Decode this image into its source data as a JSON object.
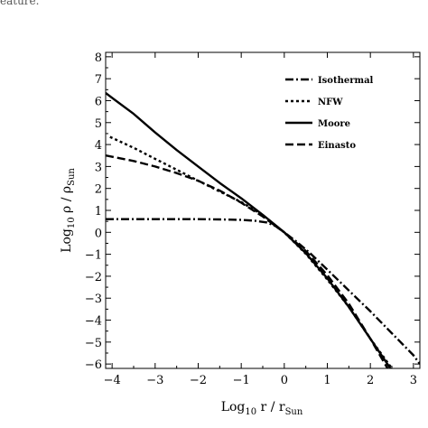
{
  "caption": "eature.",
  "chart_data": {
    "type": "line",
    "xlabel": {
      "base": "Log",
      "sub": "10",
      "main": " r / r",
      "unit_sub": "Sun"
    },
    "ylabel": {
      "base": "Log",
      "sub": "10",
      "main": " ρ / ρ",
      "unit_sub": "Sun"
    },
    "xlim": [
      -4.15,
      3.15
    ],
    "ylim": [
      -6.2,
      8.2
    ],
    "xticks": [
      -4,
      -3,
      -2,
      -1,
      0,
      1,
      2,
      3
    ],
    "yticks": [
      -6,
      -5,
      -4,
      -3,
      -2,
      -1,
      0,
      1,
      2,
      3,
      4,
      5,
      6,
      7,
      8
    ],
    "legend_position": "top-right",
    "grid": false,
    "series": [
      {
        "name": "Isothermal",
        "dash": "dashdot",
        "x": [
          -4.15,
          -3,
          -2,
          -1.5,
          -1,
          -0.7,
          -0.4,
          -0.2,
          0,
          0.3,
          0.6,
          1,
          1.5,
          2,
          2.5,
          3,
          3.15
        ],
        "y": [
          0.6,
          0.6,
          0.6,
          0.59,
          0.57,
          0.53,
          0.45,
          0.28,
          0.0,
          -0.45,
          -0.95,
          -1.7,
          -2.65,
          -3.6,
          -4.6,
          -5.6,
          -6.0
        ]
      },
      {
        "name": "NFW",
        "dash": "dot",
        "x": [
          -4.05,
          -3.5,
          -3,
          -2.5,
          -2,
          -1.5,
          -1,
          -0.5,
          0,
          0.5,
          1,
          1.5,
          2,
          2.5
        ],
        "y": [
          4.35,
          3.85,
          3.35,
          2.85,
          2.35,
          1.86,
          1.38,
          0.78,
          0.0,
          -0.98,
          -2.15,
          -3.4,
          -4.85,
          -6.2
        ]
      },
      {
        "name": "Moore",
        "dash": "solid",
        "x": [
          -4.15,
          -3.5,
          -3,
          -2.5,
          -2,
          -1.5,
          -1,
          -0.5,
          0,
          0.5,
          1,
          1.5,
          2,
          2.5
        ],
        "y": [
          6.35,
          5.4,
          4.55,
          3.75,
          3.0,
          2.25,
          1.55,
          0.8,
          0.0,
          -0.95,
          -2.1,
          -3.4,
          -4.85,
          -6.3
        ]
      },
      {
        "name": "Einasto",
        "dash": "dash",
        "x": [
          -4.15,
          -3.5,
          -3,
          -2.5,
          -2,
          -1.5,
          -1,
          -0.5,
          0,
          0.5,
          1,
          1.5,
          2,
          2.4
        ],
        "y": [
          3.5,
          3.25,
          3.0,
          2.7,
          2.35,
          1.9,
          1.35,
          0.72,
          0.0,
          -0.85,
          -1.95,
          -3.25,
          -4.85,
          -6.2
        ]
      }
    ]
  }
}
